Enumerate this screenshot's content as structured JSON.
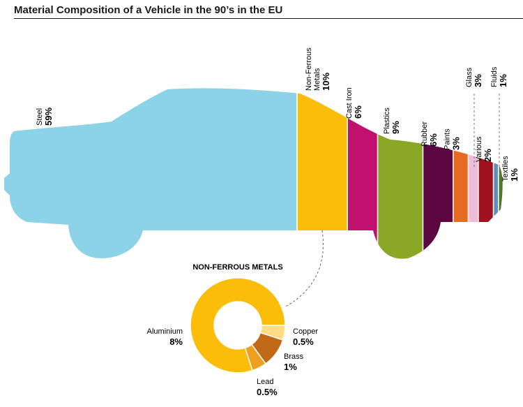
{
  "title": "Material Composition of a Vehicle in the 90’s in the EU",
  "chart_data": [
    {
      "type": "bar",
      "title": "",
      "categories": [
        "Steel",
        "Non-Ferrous Metals",
        "Cast Iron",
        "Plastics",
        "Rubber",
        "Paints",
        "Various",
        "Glass",
        "Fluids",
        "Textiles"
      ],
      "values": [
        59,
        10,
        6,
        9,
        6,
        3,
        2,
        3,
        1,
        1
      ],
      "value_labels": [
        "59%",
        "10%",
        "6%",
        "9%",
        "6%",
        "3%",
        "2%",
        "3%",
        "1%",
        "1%"
      ],
      "colors": [
        "#8dd3e8",
        "#fcbd0a",
        "#c0116f",
        "#8aa826",
        "#5c0642",
        "#e66a22",
        "#ecbcd8",
        "#a0121e",
        "#5f8fba",
        "#4b7a2a"
      ]
    },
    {
      "type": "pie",
      "title": "NON-FERROUS METALS",
      "categories": [
        "Aluminium",
        "Copper",
        "Brass",
        "Lead"
      ],
      "values": [
        8,
        0.5,
        1,
        0.5
      ],
      "value_labels": [
        "8%",
        "0.5%",
        "1%",
        "0.5%"
      ],
      "colors": [
        "#fcbd0a",
        "#fddc82",
        "#c06a18",
        "#ef9f1e"
      ]
    }
  ]
}
